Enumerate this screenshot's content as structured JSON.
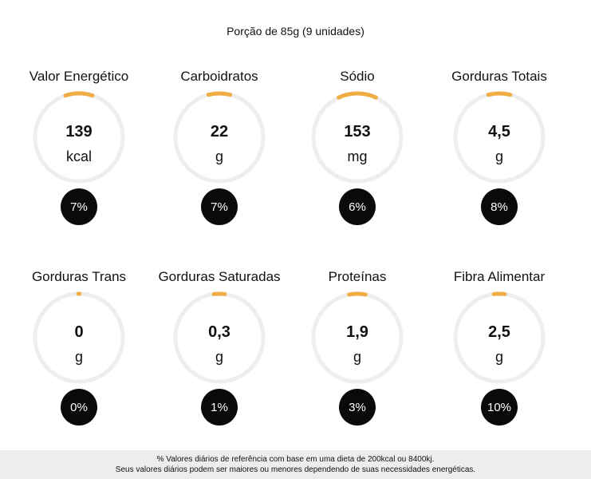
{
  "portion": "Porção de 85g (9 unidades)",
  "colors": {
    "accent": "#f0ad44",
    "track": "#eeeeee",
    "badge": "#0a0a0a"
  },
  "nutrients": [
    {
      "label": "Valor Energético",
      "value": "139",
      "unit": "kcal",
      "percent": "7%",
      "fill": 0.1
    },
    {
      "label": "Carboidratos",
      "value": "22",
      "unit": "g",
      "percent": "7%",
      "fill": 0.08
    },
    {
      "label": "Sódio",
      "value": "153",
      "unit": "mg",
      "percent": "6%",
      "fill": 0.14
    },
    {
      "label": "Gorduras Totais",
      "value": "4,5",
      "unit": "g",
      "percent": "8%",
      "fill": 0.08
    },
    {
      "label": "Gorduras Trans",
      "value": "0",
      "unit": "g",
      "percent": "0%",
      "fill": 0.005
    },
    {
      "label": "Gorduras Saturadas",
      "value": "0,3",
      "unit": "g",
      "percent": "1%",
      "fill": 0.04
    },
    {
      "label": "Proteínas",
      "value": "1,9",
      "unit": "g",
      "percent": "3%",
      "fill": 0.06
    },
    {
      "label": "Fibra Alimentar",
      "value": "2,5",
      "unit": "g",
      "percent": "10%",
      "fill": 0.04
    }
  ],
  "footer": {
    "line1": "% Valores diários de referência com base em uma dieta de 200kcal ou 8400kj.",
    "line2": "Seus valores diários podem ser maiores ou menores dependendo de suas necessidades energéticas."
  }
}
